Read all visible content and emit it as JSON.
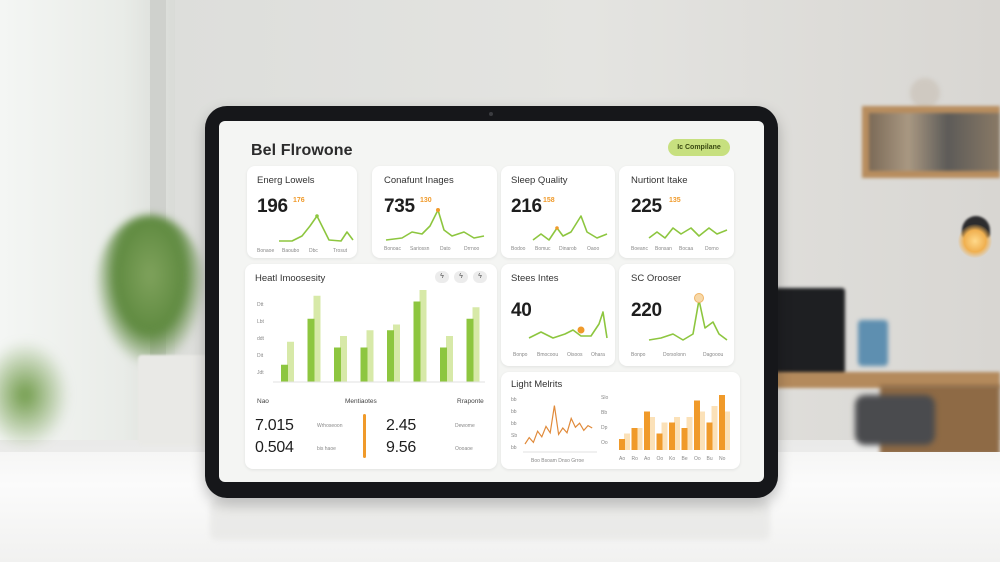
{
  "app": {
    "title": "Bel Flrowone",
    "badge": "Ic Compilane"
  },
  "colors": {
    "green": "#8dc63f",
    "light_green": "#d7e9a8",
    "orange": "#f09a2a",
    "light_orange": "#fbe1b8"
  },
  "cards": {
    "energy": {
      "title": "Energ Lowels",
      "value": "196",
      "delta": "176",
      "labels": [
        "Bonaoe",
        "Baoubo",
        "Dbc",
        "Trosut"
      ]
    },
    "current": {
      "title": "Conafunt Inages",
      "value": "735",
      "delta": "130",
      "labels": [
        "Bonoac",
        "Sariossn",
        "Dato",
        "Drrnoo"
      ]
    },
    "sleep": {
      "title": "Sleep Quality",
      "value": "216",
      "delta": "158",
      "labels": [
        "Bodoo",
        "Bomuc",
        "Dinarob",
        "Oaoo"
      ]
    },
    "nutrient": {
      "title": "Nurtiont Itake",
      "value": "225",
      "delta": "135",
      "labels": [
        "Boeanc",
        "Bonsan",
        "Bocaa",
        "Dorno"
      ]
    },
    "steps": {
      "title": "Stees Intes",
      "value": "40",
      "labels": [
        "Bonpo",
        "Bmocoou",
        "Oisoos",
        "Ohara"
      ]
    },
    "sc": {
      "title": "SC Orooser",
      "value": "220",
      "labels": [
        "Bonpo",
        "Dorsolonn",
        "Dagooou"
      ]
    },
    "health": {
      "title": "Heatl Imoosesity",
      "icons": [
        "ϟ",
        "ϟ",
        "ϟ"
      ],
      "y_ticks": [
        "Dtt",
        "Lbt",
        "ddt",
        "Dit",
        "Jdt"
      ],
      "table": {
        "headers": [
          "Nao",
          "Mentiaotes",
          "Rraponte"
        ],
        "rows": [
          {
            "a": "7.015",
            "note": "Wrhoseoon",
            "b": "2.45",
            "c": "Dewome"
          },
          {
            "a": "0.504",
            "note": "bis  haoe",
            "b": "9.56",
            "c": "Oooaoe"
          }
        ]
      }
    },
    "light": {
      "title": "Light Melrits",
      "y_ticks_left": [
        "bb",
        "bb",
        "bb",
        "Sb",
        "bb"
      ],
      "x_label_left": "Boo  Bsoam   Dnso  Grroe",
      "y_ticks_right": [
        "Slo",
        "Bb",
        "Dp",
        "Oo"
      ],
      "x_ticks_right": [
        "Ao",
        "Ro",
        "Ao",
        "Oo",
        "Ko",
        "Be",
        "Oo",
        "Bu",
        "No"
      ]
    }
  },
  "chart_data": [
    {
      "type": "bar",
      "categories": [
        "1",
        "2",
        "3",
        "4",
        "5",
        "6",
        "7",
        "8"
      ],
      "series": [
        {
          "values": [
            1.5,
            5.5,
            3.0,
            3.0,
            4.5,
            7.0,
            3.0,
            5.5
          ]
        },
        {
          "values": [
            3.5,
            7.5,
            4.0,
            4.5,
            5.0,
            8.0,
            4.0,
            6.5
          ]
        }
      ]
    },
    {
      "type": "bar",
      "categories": [
        "1",
        "2",
        "3",
        "4",
        "5",
        "6",
        "7",
        "8",
        "9"
      ],
      "series": [
        {
          "values": [
            1.0,
            2.0,
            3.5,
            1.5,
            2.5,
            2.0,
            4.5,
            2.5,
            5.0
          ]
        },
        {
          "values": [
            1.5,
            2.0,
            3.0,
            2.5,
            3.0,
            3.0,
            3.5,
            4.0,
            3.5
          ]
        }
      ]
    },
    {
      "type": "line",
      "x": [
        0,
        1,
        2,
        3,
        4,
        5,
        6,
        7,
        8,
        9,
        10,
        11,
        12,
        13,
        14,
        15,
        16
      ],
      "y": [
        1.0,
        1.8,
        1.2,
        2.6,
        1.9,
        3.2,
        2.4,
        5.8,
        2.2,
        3.0,
        2.4,
        4.2,
        3.1,
        3.6,
        2.7,
        3.3,
        3.0
      ]
    }
  ]
}
